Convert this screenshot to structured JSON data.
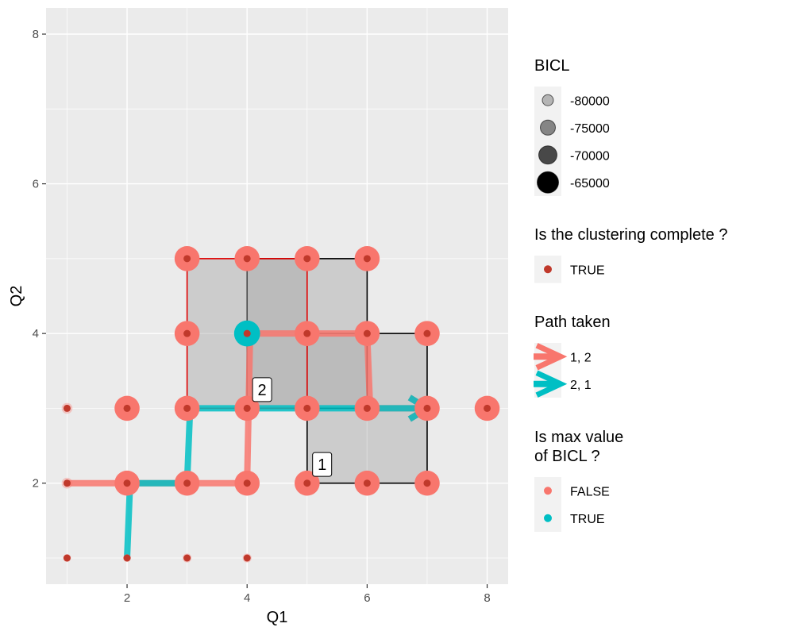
{
  "chart_data": {
    "type": "scatter",
    "xlabel": "Q1",
    "ylabel": "Q2",
    "xlim": [
      0.65,
      8.35
    ],
    "ylim": [
      0.65,
      8.35
    ],
    "x_ticks": [
      2,
      4,
      6,
      8
    ],
    "y_ticks": [
      2,
      4,
      6,
      8
    ],
    "grid": true,
    "colors": {
      "panel": "#ebebeb",
      "grid": "#ffffff",
      "salmon": "#f8766d",
      "teal": "#00bfc4",
      "inner": "#c0392b",
      "box_fill": "#a6a6a6",
      "red_border": "#e00000",
      "black_border": "#000000"
    },
    "points": [
      {
        "x": 1,
        "y": 1,
        "bicl": -85000,
        "max": false
      },
      {
        "x": 2,
        "y": 1,
        "bicl": -85000,
        "max": false
      },
      {
        "x": 3,
        "y": 1,
        "bicl": -84000,
        "max": false
      },
      {
        "x": 4,
        "y": 1,
        "bicl": -84000,
        "max": false
      },
      {
        "x": 1,
        "y": 2,
        "bicl": -82000,
        "max": false
      },
      {
        "x": 2,
        "y": 2,
        "bicl": -67000,
        "max": false
      },
      {
        "x": 3,
        "y": 2,
        "bicl": -67000,
        "max": false
      },
      {
        "x": 4,
        "y": 2,
        "bicl": -67000,
        "max": false
      },
      {
        "x": 5,
        "y": 2,
        "bicl": -67000,
        "max": false
      },
      {
        "x": 6,
        "y": 2,
        "bicl": -67000,
        "max": false
      },
      {
        "x": 7,
        "y": 2,
        "bicl": -67000,
        "max": false
      },
      {
        "x": 1,
        "y": 3,
        "bicl": -82000,
        "max": false
      },
      {
        "x": 2,
        "y": 3,
        "bicl": -67000,
        "max": false
      },
      {
        "x": 3,
        "y": 3,
        "bicl": -67000,
        "max": false
      },
      {
        "x": 4,
        "y": 3,
        "bicl": -67000,
        "max": false
      },
      {
        "x": 5,
        "y": 3,
        "bicl": -67000,
        "max": false
      },
      {
        "x": 6,
        "y": 3,
        "bicl": -67000,
        "max": false
      },
      {
        "x": 7,
        "y": 3,
        "bicl": -67000,
        "max": false
      },
      {
        "x": 8,
        "y": 3,
        "bicl": -67000,
        "max": false
      },
      {
        "x": 3,
        "y": 4,
        "bicl": -67000,
        "max": false
      },
      {
        "x": 4,
        "y": 4,
        "bicl": -66000,
        "max": true
      },
      {
        "x": 5,
        "y": 4,
        "bicl": -67000,
        "max": false
      },
      {
        "x": 6,
        "y": 4,
        "bicl": -67000,
        "max": false
      },
      {
        "x": 7,
        "y": 4,
        "bicl": -67000,
        "max": false
      },
      {
        "x": 3,
        "y": 5,
        "bicl": -67000,
        "max": false
      },
      {
        "x": 4,
        "y": 5,
        "bicl": -67000,
        "max": false
      },
      {
        "x": 5,
        "y": 5,
        "bicl": -67000,
        "max": false
      },
      {
        "x": 6,
        "y": 5,
        "bicl": -67000,
        "max": false
      }
    ],
    "rects": [
      {
        "label": "1",
        "x0": 5,
        "x1": 7,
        "y0": 2,
        "y1": 4,
        "border": "black",
        "label_x": 5.25,
        "label_y": 2.25
      },
      {
        "label": "2",
        "x0": 4,
        "x1": 6,
        "y0": 3,
        "y1": 5,
        "border": "black",
        "label_x": 4.25,
        "label_y": 3.25
      },
      {
        "label": "",
        "x0": 3,
        "x1": 5,
        "y0": 3,
        "y1": 5,
        "border": "red"
      }
    ],
    "paths": [
      {
        "name": "1, 2",
        "color": "salmon",
        "points": [
          [
            1,
            2
          ],
          [
            4,
            2
          ],
          [
            4.05,
            4
          ],
          [
            6,
            4
          ],
          [
            6.05,
            3
          ],
          [
            7,
            3
          ]
        ]
      },
      {
        "name": "2, 1",
        "color": "teal",
        "points": [
          [
            2,
            1
          ],
          [
            2.05,
            2
          ],
          [
            3,
            2
          ],
          [
            3.05,
            3
          ],
          [
            7,
            3
          ]
        ]
      }
    ],
    "legends": [
      {
        "title": "BICL",
        "type": "size",
        "entries": [
          {
            "label": "-80000",
            "value": -80000
          },
          {
            "label": "-75000",
            "value": -75000
          },
          {
            "label": "-70000",
            "value": -70000
          },
          {
            "label": "-65000",
            "value": -65000
          }
        ]
      },
      {
        "title": "Is the clustering complete ?",
        "type": "point",
        "entries": [
          {
            "label": "TRUE",
            "color": "inner"
          }
        ]
      },
      {
        "title": "Path taken",
        "type": "arrow",
        "entries": [
          {
            "label": "1, 2",
            "color": "salmon"
          },
          {
            "label": "2, 1",
            "color": "teal"
          }
        ]
      },
      {
        "title": "Is max value\nof BICL ?",
        "type": "point",
        "entries": [
          {
            "label": "FALSE",
            "color": "salmon"
          },
          {
            "label": "TRUE",
            "color": "teal"
          }
        ]
      }
    ]
  }
}
